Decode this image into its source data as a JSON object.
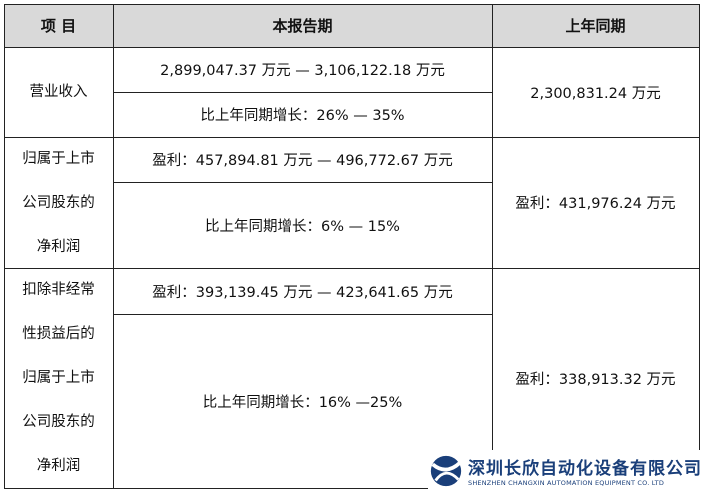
{
  "header": {
    "item": "项  目",
    "current": "本报告期",
    "prior": "上年同期"
  },
  "rows": [
    {
      "label": [
        "营业收入"
      ],
      "current_value": "2,899,047.37 万元 — 3,106,122.18 万元",
      "current_growth": "比上年同期增长：26% — 35%",
      "prior": "2,300,831.24 万元"
    },
    {
      "label": [
        "归属于上市",
        "公司股东的",
        "净利润"
      ],
      "current_value": "盈利：457,894.81 万元 — 496,772.67 万元",
      "current_growth": "比上年同期增长：6% — 15%",
      "prior": "盈利：431,976.24 万元"
    },
    {
      "label": [
        "扣除非经常",
        "性损益后的",
        "归属于上市",
        "公司股东的",
        "净利润"
      ],
      "current_value": "盈利：393,139.45 万元 — 423,641.65 万元",
      "current_growth": "比上年同期增长：16% —25%",
      "prior": "盈利：338,913.32 万元"
    }
  ],
  "watermark": {
    "name_cn": "深圳长欣自动化设备有限公司",
    "name_en": "SHENZHEN CHANGXIN AUTOMATION EQUIPMENT CO. LTD",
    "color": "#1a3f7a"
  }
}
